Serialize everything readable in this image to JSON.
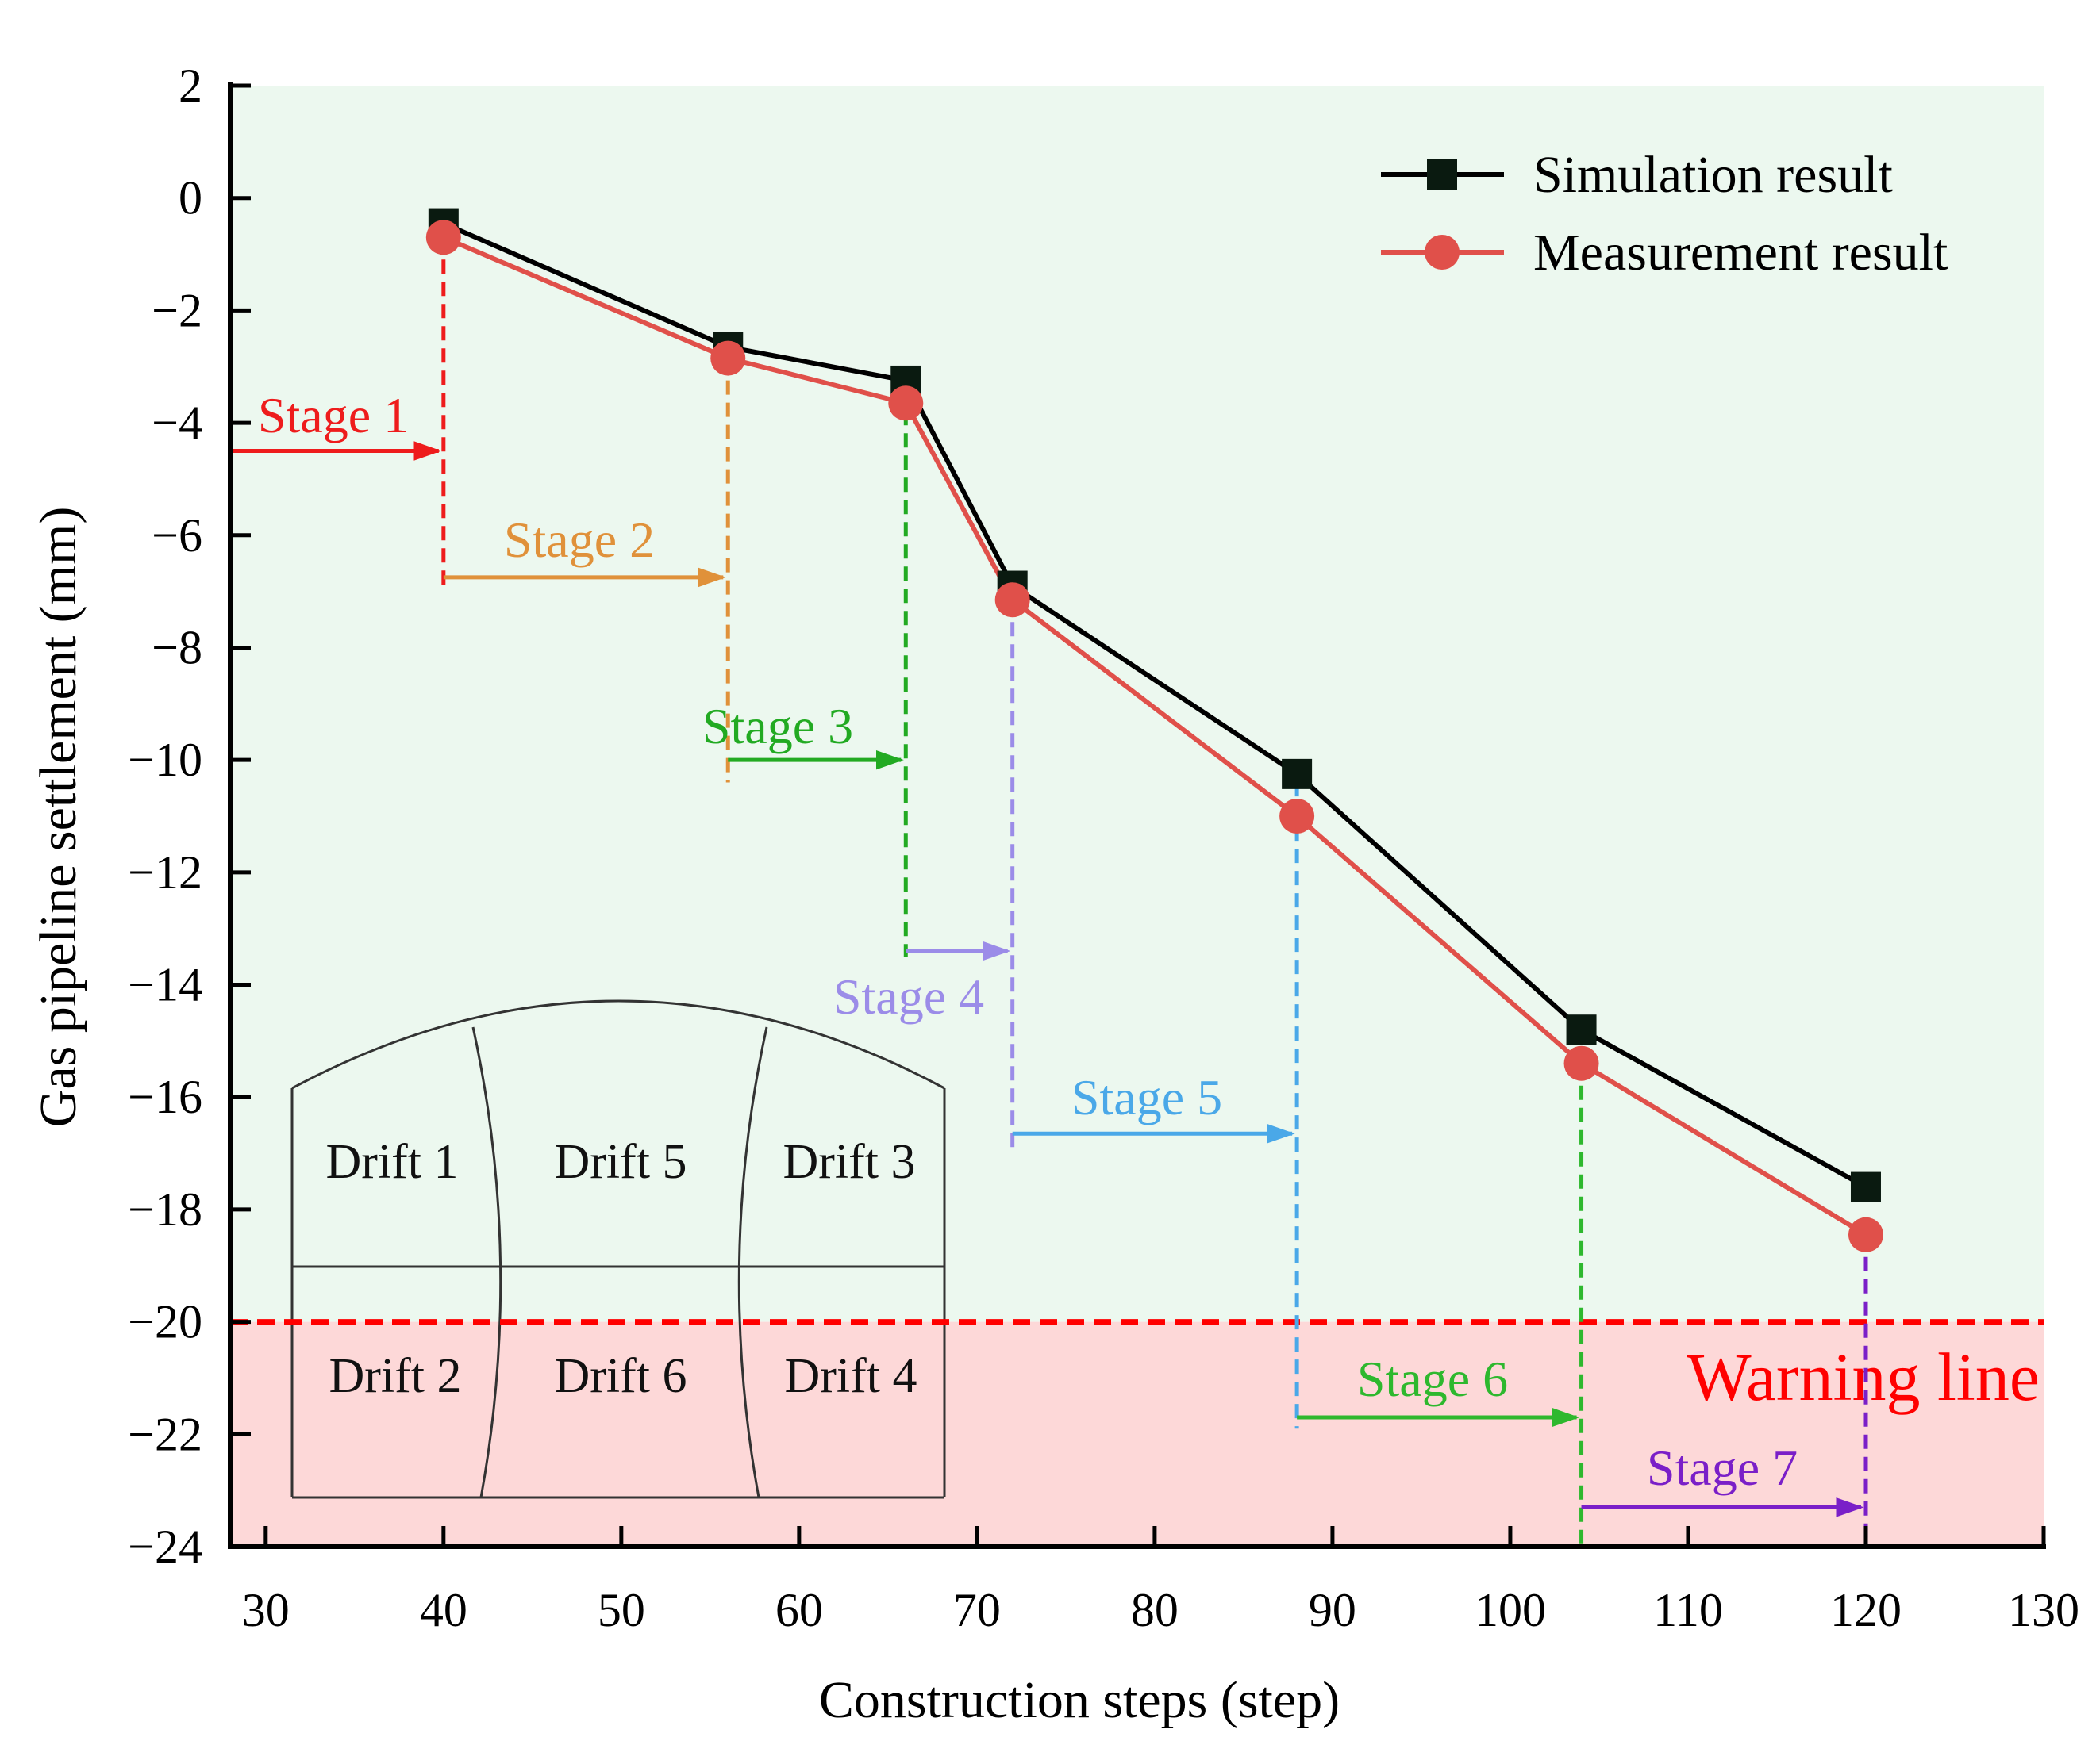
{
  "chart_data": {
    "type": "line",
    "xlabel": "Construction steps (step)",
    "ylabel": "Gas pipeline settlement (mm)",
    "xlim": [
      28,
      130
    ],
    "ylim": [
      -24,
      2
    ],
    "x_ticks": [
      30,
      40,
      50,
      60,
      70,
      80,
      90,
      100,
      110,
      120,
      130
    ],
    "x_tick_labels": [
      "30",
      "40",
      "50",
      "60",
      "70",
      "80",
      "90",
      "100",
      "110",
      "120",
      "130"
    ],
    "y_ticks": [
      2,
      0,
      -2,
      -4,
      -6,
      -8,
      -10,
      -12,
      -14,
      -16,
      -18,
      -20,
      -22,
      -24
    ],
    "y_tick_labels": [
      "2",
      "0",
      "−2",
      "−4",
      "−6",
      "−8",
      "−10",
      "−12",
      "−14",
      "−16",
      "−18",
      "−20",
      "−22",
      "−24"
    ],
    "x": [
      40,
      56,
      66,
      72,
      88,
      104,
      120
    ],
    "series": [
      {
        "name": "Simulation result",
        "marker": "square",
        "color": "#000000",
        "marker_color": "#0a1a10",
        "values": [
          -0.45,
          -2.65,
          -3.25,
          -6.9,
          -10.25,
          -14.8,
          -17.6
        ]
      },
      {
        "name": "Measurement result",
        "marker": "circle",
        "color": "#e0504a",
        "marker_color": "#e0504a",
        "values": [
          -0.7,
          -2.85,
          -3.65,
          -7.15,
          -11.0,
          -15.4,
          -18.45
        ]
      }
    ],
    "legend_position": "top-right",
    "warning": {
      "label": "Warning line",
      "value": -20,
      "color": "#ff0000"
    },
    "regions": {
      "safe_color": "#ecf8ef",
      "warning_color": "#fdd8d8"
    },
    "stages": [
      {
        "label": "Stage 1",
        "color": "#ee1c1c",
        "start": 28,
        "end": 40,
        "arrow_y": -4.5,
        "vline_x": 40,
        "vline_from": -0.7,
        "vline_to": -7.0
      },
      {
        "label": "Stage 2",
        "color": "#e0913a",
        "start": 40,
        "end": 56,
        "arrow_y": -6.75,
        "vline_x": 56,
        "vline_from": -2.85,
        "vline_to": -10.4
      },
      {
        "label": "Stage 3",
        "color": "#22aa22",
        "start": 56,
        "end": 66,
        "arrow_y": -10.0,
        "vline_x": 66,
        "vline_from": -3.0,
        "vline_to": -13.5
      },
      {
        "label": "Stage 4",
        "color": "#9b8ce8",
        "start": 66,
        "end": 72,
        "arrow_y": -13.4,
        "vline_x": 72,
        "vline_from": -7.15,
        "vline_to": -16.9
      },
      {
        "label": "Stage 5",
        "color": "#4aa8e8",
        "start": 72,
        "end": 88,
        "arrow_y": -16.65,
        "vline_x": 88,
        "vline_from": -10.0,
        "vline_to": -21.9
      },
      {
        "label": "Stage 6",
        "color": "#2eb82e",
        "start": 88,
        "end": 104,
        "arrow_y": -21.7,
        "vline_x": 104,
        "vline_from": -15.4,
        "vline_to": -24
      },
      {
        "label": "Stage 7",
        "color": "#7a1fc8",
        "start": 104,
        "end": 120,
        "arrow_y": -23.3,
        "vline_x": 120,
        "vline_from": -18.45,
        "vline_to": -24
      }
    ],
    "inset": {
      "drifts": [
        "Drift 1",
        "Drift 5",
        "Drift 3",
        "Drift 2",
        "Drift 6",
        "Drift 4"
      ]
    }
  }
}
